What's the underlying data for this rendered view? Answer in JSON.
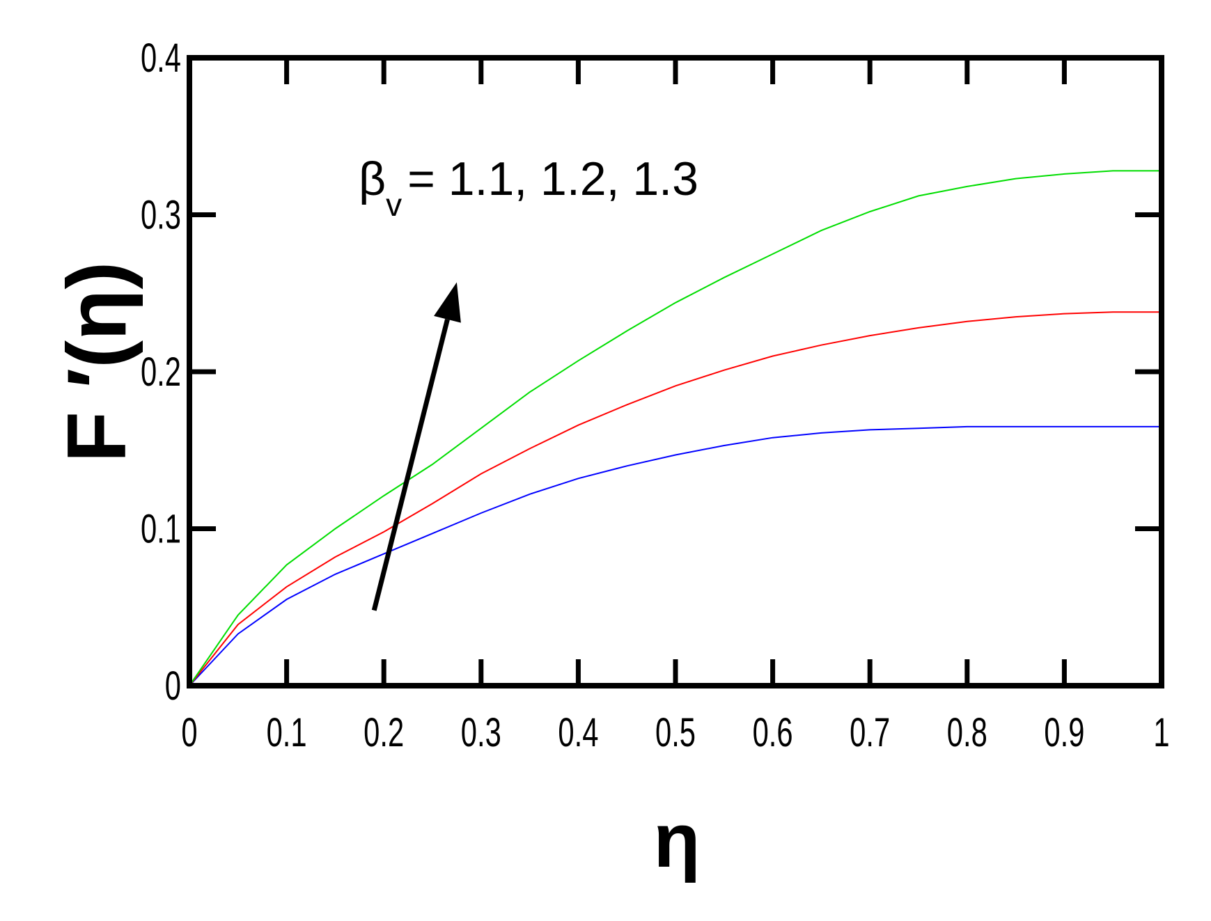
{
  "chart_data": {
    "type": "line",
    "xlabel": "η",
    "ylabel": "F ′(η)",
    "xlim": [
      0,
      1
    ],
    "ylim": [
      0,
      0.4
    ],
    "x_ticks": [
      "0",
      "0.1",
      "0.2",
      "0.3",
      "0.4",
      "0.5",
      "0.6",
      "0.7",
      "0.8",
      "0.9",
      "1"
    ],
    "y_ticks": [
      "0",
      "0.1",
      "0.2",
      "0.3",
      "0.4"
    ],
    "grid": false,
    "legend": "none",
    "annotation": {
      "symbol": "β",
      "subscript": "v",
      "text": "= 1.1, 1.2, 1.3",
      "arrow_from": [
        0.19,
        0.048
      ],
      "arrow_to": [
        0.275,
        0.257
      ]
    },
    "series": [
      {
        "color": "#0000ff",
        "x": [
          0,
          0.05,
          0.1,
          0.15,
          0.2,
          0.25,
          0.3,
          0.35,
          0.4,
          0.45,
          0.5,
          0.55,
          0.6,
          0.65,
          0.7,
          0.75,
          0.8,
          0.85,
          0.9,
          0.95,
          1.0
        ],
        "y": [
          0,
          0.033,
          0.055,
          0.071,
          0.084,
          0.097,
          0.11,
          0.122,
          0.132,
          0.14,
          0.147,
          0.153,
          0.158,
          0.161,
          0.163,
          0.164,
          0.165,
          0.165,
          0.165,
          0.165,
          0.165
        ]
      },
      {
        "color": "#ff0000",
        "x": [
          0,
          0.05,
          0.1,
          0.15,
          0.2,
          0.25,
          0.3,
          0.35,
          0.4,
          0.45,
          0.5,
          0.55,
          0.6,
          0.65,
          0.7,
          0.75,
          0.8,
          0.85,
          0.9,
          0.95,
          1.0
        ],
        "y": [
          0,
          0.039,
          0.063,
          0.082,
          0.098,
          0.116,
          0.135,
          0.151,
          0.166,
          0.179,
          0.191,
          0.201,
          0.21,
          0.217,
          0.223,
          0.228,
          0.232,
          0.235,
          0.237,
          0.238,
          0.238
        ]
      },
      {
        "color": "#00dd00",
        "x": [
          0,
          0.05,
          0.1,
          0.15,
          0.2,
          0.25,
          0.3,
          0.35,
          0.4,
          0.45,
          0.5,
          0.55,
          0.6,
          0.65,
          0.7,
          0.75,
          0.8,
          0.85,
          0.9,
          0.95,
          1.0
        ],
        "y": [
          0,
          0.045,
          0.077,
          0.1,
          0.121,
          0.141,
          0.164,
          0.187,
          0.207,
          0.226,
          0.244,
          0.26,
          0.275,
          0.29,
          0.302,
          0.312,
          0.318,
          0.323,
          0.326,
          0.328,
          0.328
        ]
      }
    ]
  }
}
